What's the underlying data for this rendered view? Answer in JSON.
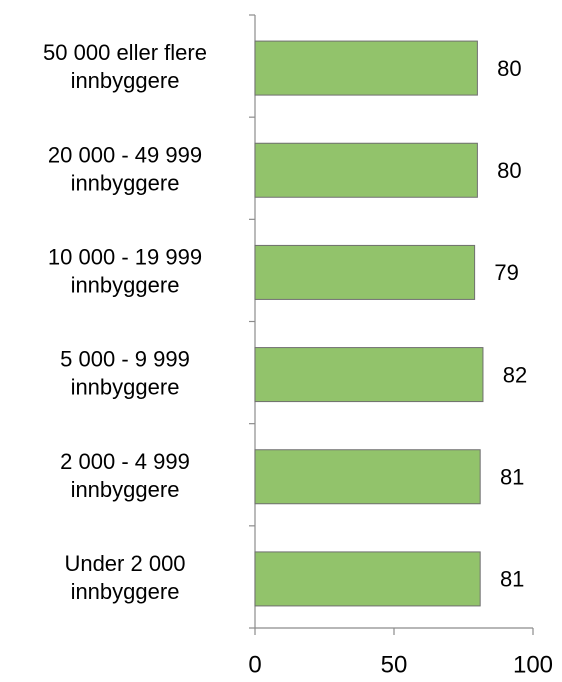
{
  "chart_data": {
    "type": "barh",
    "categories": [
      "50 000 eller flere\ninnbyggere",
      "20 000 - 49 999\ninnbyggere",
      "10 000 - 19 999\ninnbyggere",
      "5 000 - 9 999\ninnbyggere",
      "2 000 - 4 999\ninnbyggere",
      "Under 2 000\ninnbyggere"
    ],
    "values": [
      80,
      80,
      79,
      82,
      81,
      81
    ],
    "color": "#92c36b",
    "xlim": [
      0,
      100
    ],
    "xticks": [
      0,
      50,
      100
    ],
    "grid": false
  }
}
